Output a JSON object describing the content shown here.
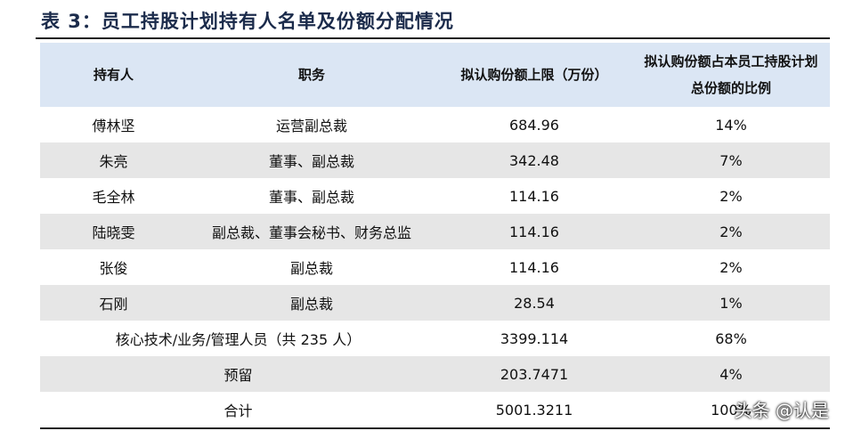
{
  "title": "表 3：员工持股计划持有人名单及份额分配情况",
  "table": {
    "header": [
      "持有人",
      "职务",
      "拟认购份额上限（万份）",
      "拟认购份额占本员工持股计划总份额的比例"
    ],
    "rows": [
      [
        "傅林坚",
        "运营副总裁",
        "684.96",
        "14%"
      ],
      [
        "朱亮",
        "董事、副总裁",
        "342.48",
        "7%"
      ],
      [
        "毛全林",
        "董事、副总裁",
        "114.16",
        "2%"
      ],
      [
        "陆晓雯",
        "副总裁、董事会秘书、财务总监",
        "114.16",
        "2%"
      ],
      [
        "张俊",
        "副总裁",
        "114.16",
        "2%"
      ],
      [
        "石刚",
        "副总裁",
        "28.54",
        "1%"
      ],
      [
        "核心技术/业务/管理人员（共 235 人）",
        "3399.114",
        "68%"
      ],
      [
        "预留",
        "203.7471",
        "4%"
      ],
      [
        "合计",
        "5001.3211",
        "100%"
      ]
    ]
  },
  "watermark": "头条 @认是"
}
